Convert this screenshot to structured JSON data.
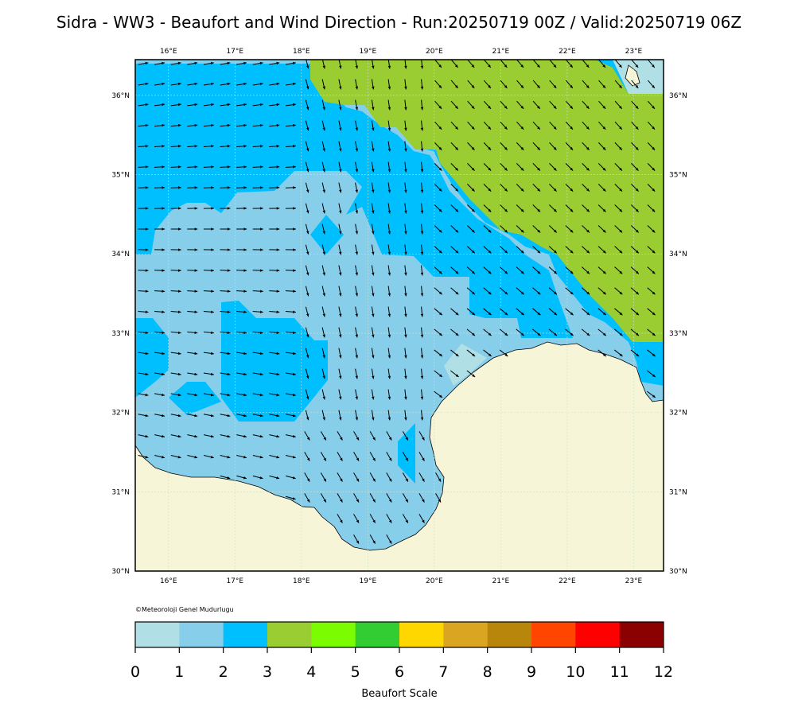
{
  "title": "Sidra - WW3 - Beaufort and Wind Direction - Run:20250719 00Z / Valid:20250719 06Z",
  "credit": "©Meteoroloji Genel Mudurlugu",
  "map": {
    "lon_labels": [
      "16°E",
      "17°E",
      "18°E",
      "19°E",
      "20°E",
      "21°E",
      "22°E",
      "23°E"
    ],
    "lon_values": [
      16,
      17,
      18,
      19,
      20,
      21,
      22,
      23
    ],
    "lat_labels": [
      "30°N",
      "31°N",
      "32°N",
      "33°N",
      "34°N",
      "35°N",
      "36°N"
    ],
    "lat_values": [
      30,
      31,
      32,
      33,
      34,
      35,
      36
    ],
    "extent": {
      "lon_min": 15.5,
      "lon_max": 23.45,
      "lat_min": 30.0,
      "lat_max": 36.45
    }
  },
  "colorbar": {
    "label": "Beaufort Scale",
    "ticks": [
      "0",
      "1",
      "2",
      "3",
      "4",
      "5",
      "6",
      "7",
      "8",
      "9",
      "10",
      "11",
      "12"
    ],
    "colors": [
      "#b0dfe5",
      "#87ceeb",
      "#00bfff",
      "#9acd32",
      "#7cfc00",
      "#32cd32",
      "#ffd700",
      "#daa520",
      "#b8860b",
      "#ff4500",
      "#ff0000",
      "#8b0000"
    ]
  },
  "colors": {
    "land": "#f7f5d8",
    "coast": "#000000",
    "arrow": "#000000",
    "grid": "#cfe3cf"
  }
}
